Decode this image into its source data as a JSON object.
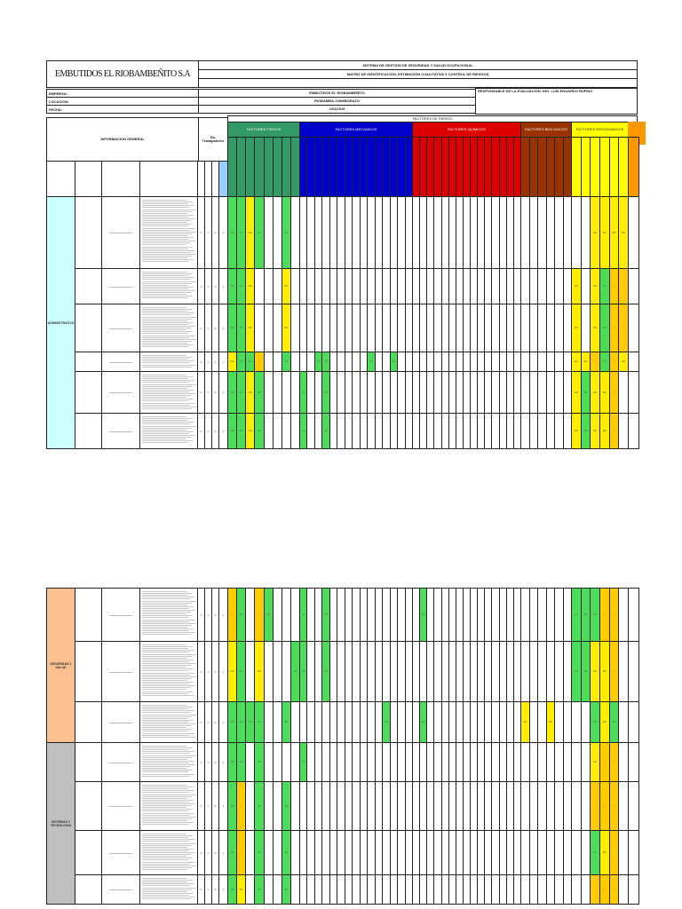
{
  "header": {
    "company_logo": "EMBUTIDOS EL RIOBAMBEÑITO S.A",
    "system_title": "SISTEMA DE GESTION DE SEGURIDAD Y SALUD OCUPACIONAL",
    "matrix_title": "MATRIZ DE IDENTIFICACIÓN, ESTIMACIÓN CUALITATIVA Y CONTROL DE RIESGOS",
    "empresa_label": "EMPRESA:",
    "empresa_value": "EMBUTIDOS EL RIOBAMBEÑITO",
    "locacion_label": "LOCACION:",
    "locacion_value": "RIOBAMBA-CHIMBORAZO",
    "fecha_label": "FECHA:",
    "fecha_value": "12/3/2019",
    "responsable": "RESPONSABLE DE LA EVALUACIÓN: ING. LUIS EDUARDO RUFINO"
  },
  "matrix_header": {
    "factores_title": "FACTORES DE RIESGO",
    "informacion_general": "INFORMACION GENERAL",
    "trabajadores": "No. Trabajadores",
    "groups": [
      {
        "label": "FACTORES FISICOS",
        "color": "#339966",
        "cols": 8
      },
      {
        "label": "FACTORES MECANICOS",
        "color": "#0000cc",
        "cols": 15
      },
      {
        "label": "FACTORES QUIMICOS",
        "color": "#dd0000",
        "cols": 15
      },
      {
        "label": "FACTORES BIOLOGICOS",
        "color": "#993300",
        "cols": 6
      },
      {
        "label": "FACTORES ERGONOMICOS",
        "color": "#ffff00",
        "cols": 6
      },
      {
        "label": "",
        "color": "#ff9900",
        "cols": 1
      }
    ]
  },
  "levels": {
    "G": {
      "text": "TO",
      "color": "#4cdc5a"
    },
    "Y": {
      "text": "MO",
      "color": "#ffee00"
    },
    "O": {
      "text": "I",
      "color": "#ffcc00"
    }
  },
  "sections": [
    {
      "label": "ADMINISTRATIVO",
      "color": "#ccffff",
      "table": 0,
      "rows": [
        0,
        1,
        2,
        3,
        4,
        5
      ]
    },
    {
      "label": "SEGURIDAD Y SALUD",
      "color": "#fac090",
      "table": 1,
      "rows": [
        0,
        1,
        2
      ]
    },
    {
      "label": "SISTEMAS Y TECNOLOGIA",
      "color": "#c0c0c0",
      "table": 1,
      "rows": [
        3,
        4,
        5,
        6
      ]
    }
  ],
  "tables": [
    {
      "rows": [
        {
          "workers": [
            "0",
            "1",
            "4",
            "1"
          ],
          "cells": {
            "0": "G",
            "1": "G",
            "2": "Y",
            "3": "G",
            "6": "G",
            "46": "Y",
            "47": "Y",
            "48": "Y",
            "49": "Y"
          }
        },
        {
          "workers": [
            "0",
            "1",
            "3",
            "1"
          ],
          "cells": {
            "0": "G",
            "1": "G",
            "2": "Y",
            "6": "Y",
            "44": "Y",
            "46": "Y",
            "47": "G",
            "48": "O",
            "49": "O"
          }
        },
        {
          "workers": [
            "0",
            "1",
            "4",
            "1"
          ],
          "cells": {
            "0": "G",
            "1": "G",
            "2": "Y",
            "6": "Y",
            "44": "Y",
            "46": "Y",
            "47": "G",
            "48": "O",
            "49": "O"
          }
        },
        {
          "workers": [
            "0",
            "1",
            "4",
            "1"
          ],
          "cells": {
            "0": "Y",
            "1": "G",
            "2": "G",
            "3": "O",
            "6": "G",
            "10": "G",
            "11": "G",
            "17": "G",
            "20": "G",
            "44": "Y",
            "45": "Y",
            "46": "O",
            "47": "G",
            "48": "O",
            "49": "Y"
          }
        },
        {
          "workers": [
            "0",
            "1",
            "4",
            "1"
          ],
          "cells": {
            "0": "G",
            "1": "G",
            "2": "Y",
            "3": "G",
            "8": "G",
            "11": "G",
            "44": "Y",
            "45": "G",
            "46": "Y",
            "47": "Y",
            "48": "O"
          }
        },
        {
          "workers": [
            "0",
            "1",
            "4",
            "1"
          ],
          "cells": {
            "0": "G",
            "1": "G",
            "2": "Y",
            "3": "G",
            "8": "G",
            "11": "G",
            "44": "Y",
            "45": "G",
            "46": "Y",
            "47": "Y",
            "48": "O"
          }
        }
      ]
    },
    {
      "rows": [
        {
          "workers": [
            "0",
            "1",
            "4",
            "1"
          ],
          "cells": {
            "0": "O",
            "1": "G",
            "3": "O",
            "4": "G",
            "8": "G",
            "11": "G",
            "24": "G",
            "44": "G",
            "45": "G",
            "46": "G",
            "47": "O",
            "48": "O"
          }
        },
        {
          "workers": [
            "0",
            "1",
            "4",
            "1"
          ],
          "cells": {
            "0": "Y",
            "1": "G",
            "3": "Y",
            "7": "G",
            "8": "G",
            "11": "G",
            "44": "G",
            "45": "G",
            "46": "Y",
            "47": "Y",
            "48": "O"
          }
        },
        {
          "workers": [
            "0",
            "1",
            "4",
            "1"
          ],
          "cells": {
            "0": "G",
            "1": "G",
            "2": "G",
            "3": "G",
            "6": "G",
            "19": "G",
            "24": "G",
            "38": "Y",
            "41": "Y",
            "46": "G",
            "47": "Y",
            "48": "G"
          }
        },
        {
          "workers": [
            "0",
            "1",
            "4",
            "1"
          ],
          "cells": {
            "0": "G",
            "1": "G",
            "3": "G",
            "8": "G",
            "46": "Y",
            "47": "O",
            "48": "O"
          }
        },
        {
          "workers": [
            "0",
            "1",
            "4",
            "1"
          ],
          "cells": {
            "0": "G",
            "1": "O",
            "3": "G",
            "6": "G",
            "46": "O",
            "47": "O",
            "48": "O"
          }
        },
        {
          "workers": [
            "0",
            "1",
            "4",
            "1"
          ],
          "cells": {
            "0": "G",
            "1": "O",
            "3": "G",
            "6": "G",
            "46": "G",
            "47": "Y",
            "48": "O"
          }
        },
        {
          "workers": [
            "0",
            "1",
            "4",
            "1"
          ],
          "cells": {
            "0": "G",
            "1": "Y",
            "3": "G",
            "6": "G",
            "46": "O",
            "47": "O",
            "48": "O"
          }
        }
      ]
    }
  ]
}
